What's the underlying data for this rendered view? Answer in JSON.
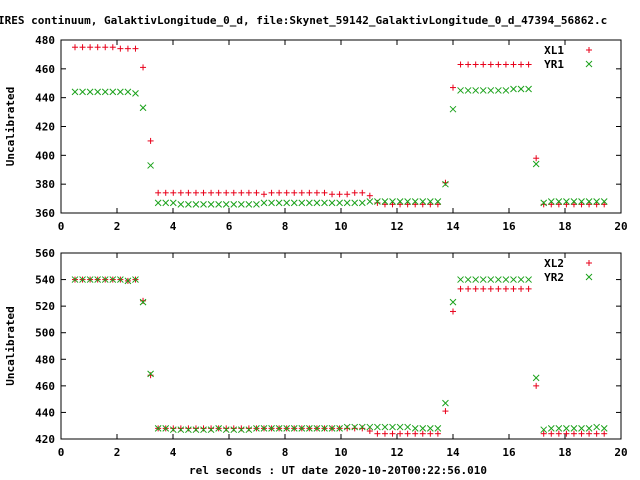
{
  "title": "IRES continuum, GalaktivLongitude_0_d, file:Skynet_59142_GalaktivLongitude_0_d_47394_56862.c",
  "xlabel": "rel seconds : UT date 2020-10-20T00:22:56.010",
  "colors": {
    "series1": "#e8001a",
    "series2": "#1aa11a",
    "axis": "#000000"
  },
  "chart_data": [
    {
      "type": "scatter",
      "ylabel": "Uncalibrated",
      "xlim": [
        0,
        20
      ],
      "ylim": [
        360,
        480
      ],
      "xticks": [
        0,
        2,
        4,
        6,
        8,
        10,
        12,
        14,
        16,
        18,
        20
      ],
      "yticks": [
        360,
        380,
        400,
        420,
        440,
        460,
        480
      ],
      "legend_position": "top-right",
      "series": [
        {
          "name": "XL1",
          "marker": "plus",
          "x": [
            0.5,
            0.77,
            1.04,
            1.31,
            1.58,
            1.85,
            2.12,
            2.39,
            2.66,
            2.93,
            3.2,
            3.47,
            3.74,
            4.01,
            4.28,
            4.55,
            4.82,
            5.09,
            5.36,
            5.63,
            5.9,
            6.17,
            6.44,
            6.71,
            6.98,
            7.25,
            7.52,
            7.79,
            8.06,
            8.33,
            8.6,
            8.87,
            9.14,
            9.41,
            9.68,
            9.95,
            10.22,
            10.49,
            10.76,
            11.03,
            11.3,
            11.57,
            11.84,
            12.11,
            12.38,
            12.65,
            12.92,
            13.19,
            13.46,
            13.73,
            14.0,
            14.27,
            14.54,
            14.81,
            15.08,
            15.35,
            15.62,
            15.89,
            16.16,
            16.43,
            16.7,
            16.97,
            17.24,
            17.51,
            17.78,
            18.05,
            18.32,
            18.59,
            18.86,
            19.13,
            19.4
          ],
          "y": [
            475,
            475,
            475,
            475,
            475,
            475,
            474,
            474,
            474,
            461,
            410,
            374,
            374,
            374,
            374,
            374,
            374,
            374,
            374,
            374,
            374,
            374,
            374,
            374,
            374,
            373,
            374,
            374,
            374,
            374,
            374,
            374,
            374,
            374,
            373,
            373,
            373,
            374,
            374,
            372,
            367,
            366,
            366,
            366,
            366,
            366,
            366,
            366,
            366,
            381,
            447,
            463,
            463,
            463,
            463,
            463,
            463,
            463,
            463,
            463,
            463,
            398,
            366,
            366,
            366,
            366,
            366,
            366,
            366,
            366,
            366
          ],
          "y_note": ""
        },
        {
          "name": "YR1",
          "marker": "cross",
          "x": [
            0.5,
            0.77,
            1.04,
            1.31,
            1.58,
            1.85,
            2.12,
            2.39,
            2.66,
            2.93,
            3.2,
            3.47,
            3.74,
            4.01,
            4.28,
            4.55,
            4.82,
            5.09,
            5.36,
            5.63,
            5.9,
            6.17,
            6.44,
            6.71,
            6.98,
            7.25,
            7.52,
            7.79,
            8.06,
            8.33,
            8.6,
            8.87,
            9.14,
            9.41,
            9.68,
            9.95,
            10.22,
            10.49,
            10.76,
            11.03,
            11.3,
            11.57,
            11.84,
            12.11,
            12.38,
            12.65,
            12.92,
            13.19,
            13.46,
            13.73,
            14.0,
            14.27,
            14.54,
            14.81,
            15.08,
            15.35,
            15.62,
            15.89,
            16.16,
            16.43,
            16.7,
            16.97,
            17.24,
            17.51,
            17.78,
            18.05,
            18.32,
            18.59,
            18.86,
            19.13,
            19.4
          ],
          "y": [
            444,
            444,
            444,
            444,
            444,
            444,
            444,
            444,
            443,
            433,
            393,
            367,
            367,
            367,
            366,
            366,
            366,
            366,
            366,
            366,
            366,
            366,
            366,
            366,
            366,
            367,
            367,
            367,
            367,
            367,
            367,
            367,
            367,
            367,
            367,
            367,
            367,
            367,
            367,
            368,
            368,
            368,
            368,
            368,
            368,
            368,
            368,
            368,
            368,
            380,
            432,
            445,
            445,
            445,
            445,
            445,
            445,
            445,
            446,
            446,
            446,
            394,
            367,
            368,
            368,
            368,
            368,
            368,
            368,
            368,
            368
          ]
        }
      ]
    },
    {
      "type": "scatter",
      "ylabel": "Uncalibrated",
      "xlim": [
        0,
        20
      ],
      "ylim": [
        420,
        560
      ],
      "xticks": [
        0,
        2,
        4,
        6,
        8,
        10,
        12,
        14,
        16,
        18,
        20
      ],
      "yticks": [
        420,
        440,
        460,
        480,
        500,
        520,
        540,
        560
      ],
      "legend_position": "top-right",
      "series": [
        {
          "name": "XL2",
          "marker": "plus",
          "x": [
            0.5,
            0.77,
            1.04,
            1.31,
            1.58,
            1.85,
            2.12,
            2.39,
            2.66,
            2.93,
            3.2,
            3.47,
            3.74,
            4.01,
            4.28,
            4.55,
            4.82,
            5.09,
            5.36,
            5.63,
            5.9,
            6.17,
            6.44,
            6.71,
            6.98,
            7.25,
            7.52,
            7.79,
            8.06,
            8.33,
            8.6,
            8.87,
            9.14,
            9.41,
            9.68,
            9.95,
            10.22,
            10.49,
            10.76,
            11.03,
            11.3,
            11.57,
            11.84,
            12.11,
            12.38,
            12.65,
            12.92,
            13.19,
            13.46,
            13.73,
            14.0,
            14.27,
            14.54,
            14.81,
            15.08,
            15.35,
            15.62,
            15.89,
            16.16,
            16.43,
            16.7,
            16.97,
            17.24,
            17.51,
            17.78,
            18.05,
            18.32,
            18.59,
            18.86,
            19.13,
            19.4
          ],
          "y": [
            540,
            540,
            540,
            540,
            540,
            540,
            540,
            539,
            540,
            524,
            468,
            428,
            428,
            428,
            428,
            428,
            428,
            428,
            428,
            428,
            428,
            428,
            428,
            428,
            428,
            428,
            428,
            428,
            428,
            428,
            428,
            428,
            428,
            428,
            428,
            428,
            428,
            428,
            428,
            426,
            424,
            424,
            424,
            424,
            424,
            424,
            424,
            424,
            424,
            441,
            516,
            533,
            533,
            533,
            533,
            533,
            533,
            533,
            533,
            533,
            533,
            460,
            424,
            424,
            424,
            424,
            424,
            424,
            424,
            424,
            424
          ]
        },
        {
          "name": "YR2",
          "marker": "cross",
          "x": [
            0.5,
            0.77,
            1.04,
            1.31,
            1.58,
            1.85,
            2.12,
            2.39,
            2.66,
            2.93,
            3.2,
            3.47,
            3.74,
            4.01,
            4.28,
            4.55,
            4.82,
            5.09,
            5.36,
            5.63,
            5.9,
            6.17,
            6.44,
            6.71,
            6.98,
            7.25,
            7.52,
            7.79,
            8.06,
            8.33,
            8.6,
            8.87,
            9.14,
            9.41,
            9.68,
            9.95,
            10.22,
            10.49,
            10.76,
            11.03,
            11.3,
            11.57,
            11.84,
            12.11,
            12.38,
            12.65,
            12.92,
            13.19,
            13.46,
            13.73,
            14.0,
            14.27,
            14.54,
            14.81,
            15.08,
            15.35,
            15.62,
            15.89,
            16.16,
            16.43,
            16.7,
            16.97,
            17.24,
            17.51,
            17.78,
            18.05,
            18.32,
            18.59,
            18.86,
            19.13,
            19.4
          ],
          "y": [
            540,
            540,
            540,
            540,
            540,
            540,
            540,
            539,
            540,
            523,
            469,
            428,
            428,
            427,
            427,
            427,
            427,
            427,
            427,
            428,
            427,
            427,
            427,
            427,
            428,
            428,
            428,
            428,
            428,
            428,
            428,
            428,
            428,
            428,
            428,
            428,
            429,
            429,
            429,
            429,
            429,
            429,
            429,
            429,
            429,
            428,
            428,
            428,
            428,
            447,
            523,
            540,
            540,
            540,
            540,
            540,
            540,
            540,
            540,
            540,
            540,
            466,
            427,
            428,
            428,
            428,
            428,
            428,
            428,
            429,
            428
          ]
        }
      ]
    }
  ]
}
